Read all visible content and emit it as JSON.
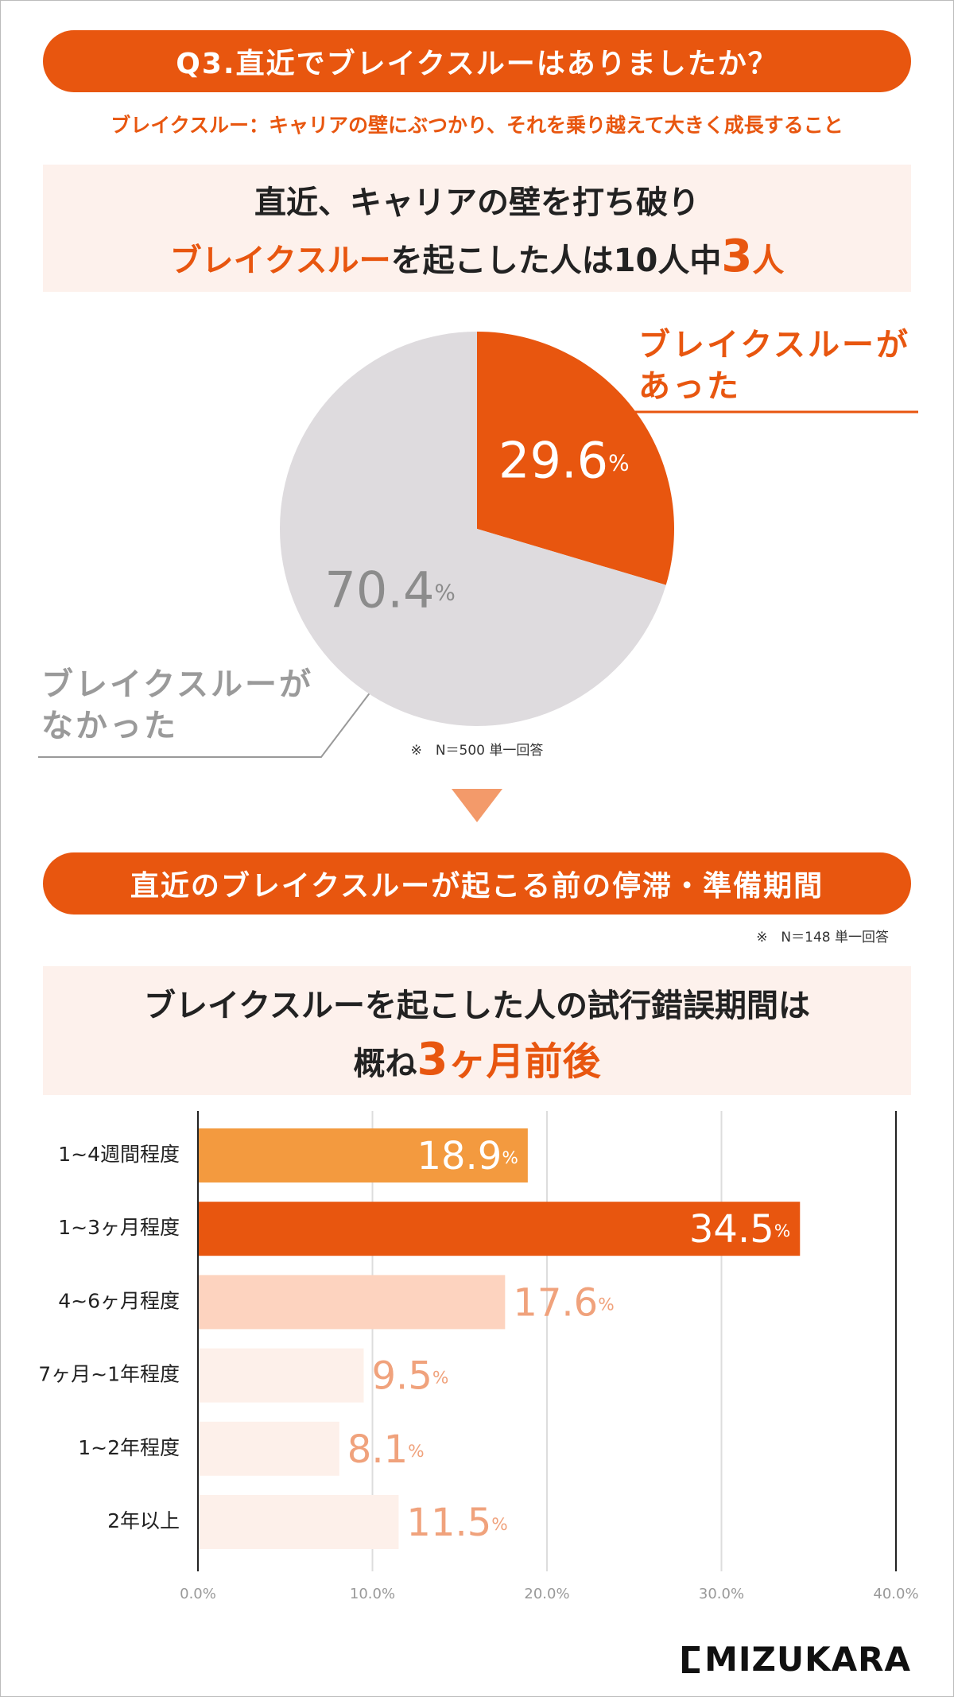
{
  "header": {
    "question": "Q3.直近でブレイクスルーはありましたか？",
    "definition": "ブレイクスルー：キャリアの壁にぶつかり、それを乗り越えて大きく成長すること"
  },
  "summary1": {
    "line1": "直近、キャリアの壁を打ち破り",
    "line2": [
      "ブレイクスルー",
      "を起こした人は10人中",
      "3",
      "人"
    ]
  },
  "section2": {
    "title": "直近のブレイクスルーが起こる前の停滞・準備期間",
    "note": "※　N＝148 単一回答"
  },
  "summary2": {
    "line1": "ブレイクスルーを起こした人の試行錯誤期間は",
    "line2": [
      "概ね",
      "3",
      "ヶ月前後"
    ]
  },
  "logo": "MIZUKARA",
  "chart_data": [
    {
      "type": "pie",
      "categories": [
        "ブレイクスルーが\nあった",
        "ブレイクスルーが\nなかった"
      ],
      "values": [
        29.6,
        70.4
      ],
      "value_labels": [
        "29.6%",
        "70.4%"
      ],
      "colors": [
        "#e8560f",
        "#dedbde"
      ],
      "value_label_colors": [
        "#ffffff",
        "#8c8c8c"
      ],
      "note": "※　N＝500 単一回答"
    },
    {
      "type": "barh",
      "categories": [
        "1~4週間程度",
        "1~3ヶ月程度",
        "4~6ヶ月程度",
        "7ヶ月~1年程度",
        "1~2年程度",
        "2年以上"
      ],
      "values": [
        18.9,
        34.5,
        17.6,
        9.5,
        8.1,
        11.5
      ],
      "value_labels": [
        "18.9%",
        "34.5%",
        "17.6%",
        "9.5%",
        "8.1%",
        "11.5%"
      ],
      "colors": [
        "#f39a3f",
        "#e8560f",
        "#fdd3bf",
        "#fdf0ea",
        "#fdf0ea",
        "#fdf0ea"
      ],
      "value_label_colors": [
        "#ffffff",
        "#ffffff",
        "#f0a27c",
        "#f0a27c",
        "#f0a27c",
        "#f0a27c"
      ],
      "xlim": [
        0,
        40
      ],
      "xticks": [
        {
          "value": 0,
          "label": "0.0%"
        },
        {
          "value": 10,
          "label": "10.0%"
        },
        {
          "value": 20,
          "label": "20.0%"
        },
        {
          "value": 30,
          "label": "30.0%"
        },
        {
          "value": 40,
          "label": "40.0%"
        }
      ],
      "grid": true
    }
  ]
}
